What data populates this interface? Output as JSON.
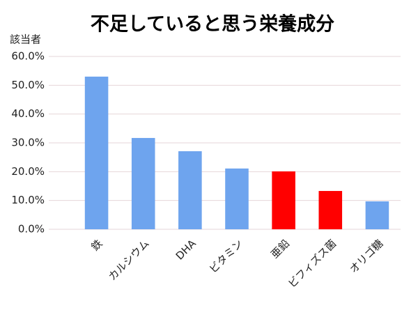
{
  "chart_data": {
    "type": "bar",
    "title": "不足していると思う栄養成分",
    "y_label": "該当者",
    "categories": [
      "鉄",
      "カルシウム",
      "DHA",
      "ビタミン",
      "亜鉛",
      "ビフィズス菌",
      "オリゴ糖"
    ],
    "values": [
      53.0,
      31.7,
      27.1,
      21.1,
      20.1,
      13.3,
      9.7
    ],
    "colors": [
      "#6ea4ee",
      "#6ea4ee",
      "#6ea4ee",
      "#6ea4ee",
      "#ff0000",
      "#ff0000",
      "#6ea4ee"
    ],
    "ylim": [
      0,
      60
    ],
    "yticks": [
      {
        "value": 0,
        "label": "0.0%"
      },
      {
        "value": 10,
        "label": "10.0%"
      },
      {
        "value": 20,
        "label": "20.0%"
      },
      {
        "value": 30,
        "label": "30.0%"
      },
      {
        "value": 40,
        "label": "40.0%"
      },
      {
        "value": 50,
        "label": "50.0%"
      },
      {
        "value": 60,
        "label": "60.0%"
      }
    ],
    "grid": true
  }
}
